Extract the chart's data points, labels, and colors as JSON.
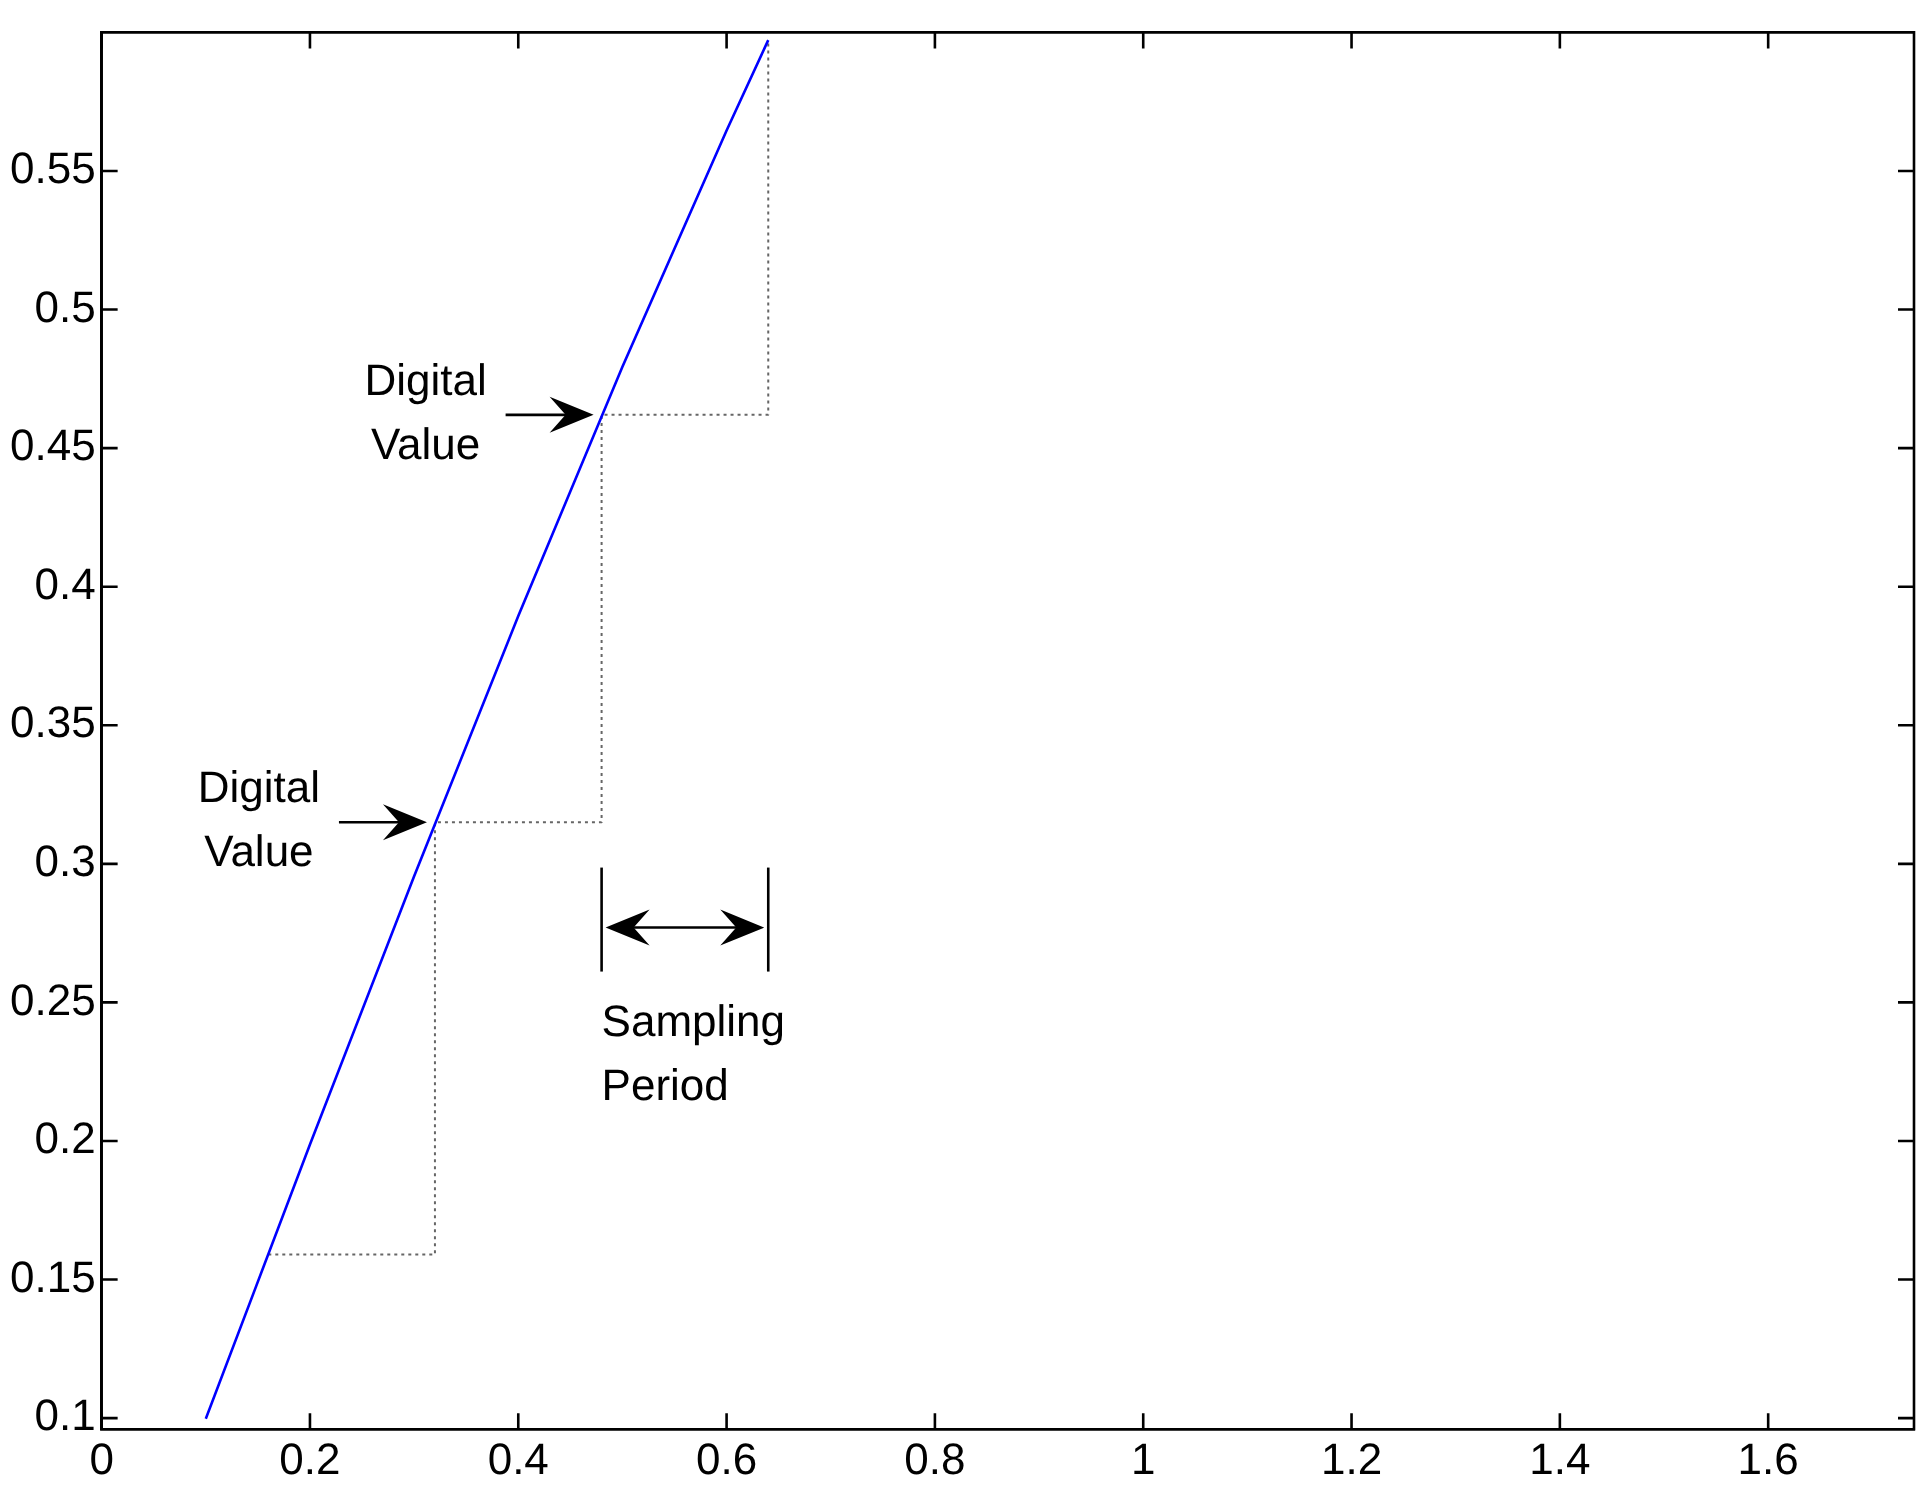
{
  "chart_data": {
    "type": "line",
    "xlim": [
      0,
      1.74
    ],
    "ylim": [
      0.096,
      0.6
    ],
    "xticks": [
      0,
      0.2,
      0.4,
      0.6,
      0.8,
      1,
      1.2,
      1.4,
      1.6
    ],
    "yticks": [
      0.1,
      0.15,
      0.2,
      0.25,
      0.3,
      0.35,
      0.4,
      0.45,
      0.5,
      0.55
    ],
    "grid": false,
    "legend": false,
    "marker": "none",
    "series": [
      {
        "color": "#0000ff",
        "line_style": "solid",
        "x": [
          0.1,
          0.2,
          0.3,
          0.4,
          0.5,
          0.6,
          0.64
        ],
        "values": [
          0.0998,
          0.1987,
          0.2955,
          0.3894,
          0.4794,
          0.5646,
          0.5972
        ]
      },
      {
        "type": "step",
        "color": "#666666",
        "line_style": "dotted",
        "x": [
          0.16,
          0.32,
          0.48,
          0.64
        ],
        "values": [
          0.159,
          0.315,
          0.462,
          0.597
        ]
      }
    ],
    "annotations": [
      {
        "text": "Digital Value",
        "x": 0.48,
        "y": 0.462
      },
      {
        "text": "Digital Value",
        "x": 0.32,
        "y": 0.315
      },
      "Sampling Period"
    ]
  }
}
